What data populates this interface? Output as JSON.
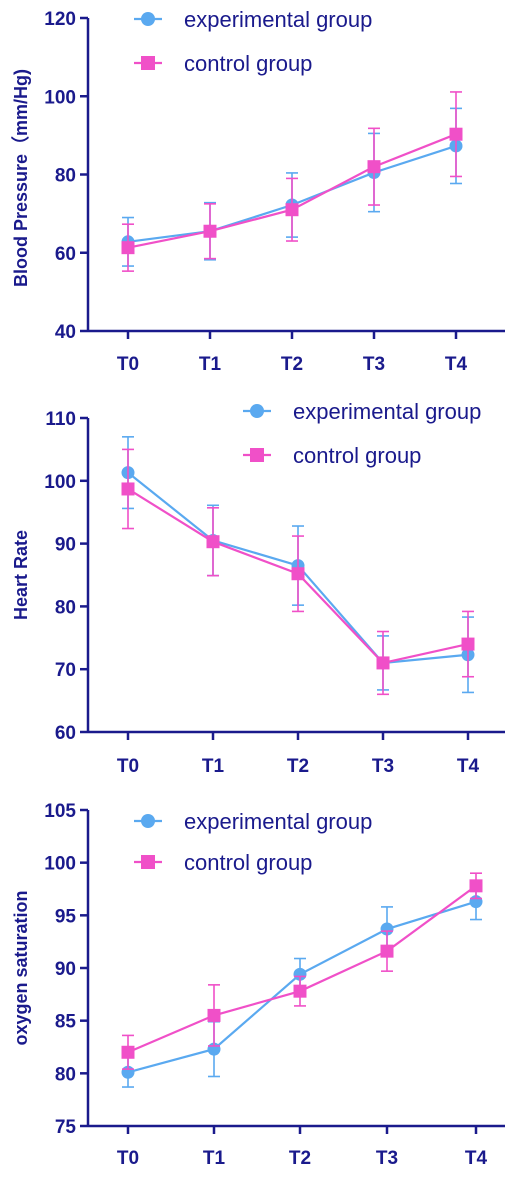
{
  "colors": {
    "axis": "#1a1a8c",
    "experimental": "#5aa9f0",
    "control": "#f050c8"
  },
  "chart_data": [
    {
      "type": "line",
      "title": "",
      "xlabel": "",
      "ylabel": "Blood Pressure（mm/Hg)",
      "categories": [
        "T0",
        "T1",
        "T2",
        "T3",
        "T4"
      ],
      "ylim": [
        40,
        120
      ],
      "yticks": [
        40,
        60,
        80,
        100,
        120
      ],
      "legend_position": "top",
      "series": [
        {
          "name": "experimental group",
          "marker": "circle",
          "color": "#5aa9f0",
          "values": [
            62.8,
            65.5,
            72.2,
            80.5,
            87.3
          ],
          "errors": [
            6.2,
            7.3,
            8.2,
            10.0,
            9.6
          ]
        },
        {
          "name": "control group",
          "marker": "square",
          "color": "#f050c8",
          "values": [
            61.3,
            65.5,
            71.0,
            82.0,
            90.3
          ],
          "errors": [
            6.0,
            7.0,
            8.0,
            9.8,
            10.8
          ]
        }
      ]
    },
    {
      "type": "line",
      "title": "",
      "xlabel": "",
      "ylabel": "Heart Rate",
      "categories": [
        "T0",
        "T1",
        "T2",
        "T3",
        "T4"
      ],
      "ylim": [
        60,
        110
      ],
      "yticks": [
        60,
        70,
        80,
        90,
        100,
        110
      ],
      "legend_position": "top-right",
      "series": [
        {
          "name": "experimental group",
          "marker": "circle",
          "color": "#5aa9f0",
          "values": [
            101.3,
            90.5,
            86.5,
            71.0,
            72.3
          ],
          "errors": [
            5.7,
            5.6,
            6.3,
            4.3,
            6.0
          ]
        },
        {
          "name": "control group",
          "marker": "square",
          "color": "#f050c8",
          "values": [
            98.7,
            90.3,
            85.2,
            71.0,
            74.0
          ],
          "errors": [
            6.3,
            5.4,
            6.0,
            5.0,
            5.2
          ]
        }
      ]
    },
    {
      "type": "line",
      "title": "",
      "xlabel": "",
      "ylabel": "oxygen saturation",
      "categories": [
        "T0",
        "T1",
        "T2",
        "T3",
        "T4"
      ],
      "ylim": [
        75,
        105
      ],
      "yticks": [
        75,
        80,
        85,
        90,
        95,
        100,
        105
      ],
      "legend_position": "top",
      "series": [
        {
          "name": "experimental group",
          "marker": "circle",
          "color": "#5aa9f0",
          "values": [
            80.1,
            82.3,
            89.4,
            93.7,
            96.3
          ],
          "errors": [
            1.4,
            2.6,
            1.5,
            2.1,
            1.7
          ]
        },
        {
          "name": "control group",
          "marker": "square",
          "color": "#f050c8",
          "values": [
            82.0,
            85.5,
            87.8,
            91.6,
            97.8
          ],
          "errors": [
            1.6,
            2.9,
            1.4,
            1.9,
            1.2
          ]
        }
      ]
    }
  ]
}
